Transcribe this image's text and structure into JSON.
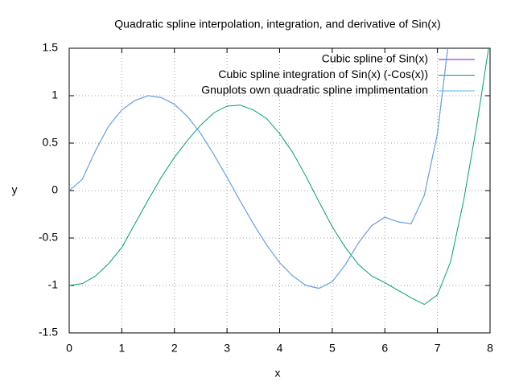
{
  "chart_data": {
    "type": "line",
    "title": "Quadratic spline interpolation, integration, and derivative of Sin(x)",
    "x_label": "x",
    "y_label": "y",
    "x": [
      0,
      0.25,
      0.5,
      0.75,
      1,
      1.25,
      1.5,
      1.75,
      2,
      2.25,
      2.5,
      2.75,
      3,
      3.25,
      3.5,
      3.75,
      4,
      4.25,
      4.5,
      4.75,
      5,
      5.25,
      5.5,
      5.75,
      6,
      6.25,
      6.5,
      6.75,
      7,
      7.25,
      7.5,
      7.75,
      8
    ],
    "series": [
      {
        "name": "Cubic spline of Sin(x)",
        "color": "#9400d3",
        "values": [
          0,
          0.12,
          0.42,
          0.68,
          0.85,
          0.95,
          1.0,
          0.98,
          0.91,
          0.78,
          0.6,
          0.38,
          0.14,
          -0.11,
          -0.35,
          -0.57,
          -0.76,
          -0.9,
          -1.0,
          -1.03,
          -0.96,
          -0.78,
          -0.55,
          -0.37,
          -0.28,
          -0.33,
          -0.35,
          -0.05,
          0.6,
          1.75,
          null,
          null,
          null
        ]
      },
      {
        "name": "Cubic spline integration of Sin(x) (-Cos(x))",
        "color": "#009e73",
        "values": [
          -1,
          -0.98,
          -0.9,
          -0.77,
          -0.6,
          -0.35,
          -0.1,
          0.14,
          0.35,
          0.53,
          0.69,
          0.82,
          0.89,
          0.9,
          0.85,
          0.76,
          0.6,
          0.4,
          0.15,
          -0.12,
          -0.38,
          -0.6,
          -0.78,
          -0.9,
          -0.97,
          -1.05,
          -1.13,
          -1.2,
          -1.1,
          -0.75,
          -0.1,
          0.7,
          1.6
        ]
      },
      {
        "name": "Gnuplots own quadratic spline implimentation",
        "color": "#56b4e9",
        "values": [
          0,
          0.12,
          0.42,
          0.68,
          0.85,
          0.95,
          1.0,
          0.98,
          0.91,
          0.78,
          0.6,
          0.38,
          0.14,
          -0.11,
          -0.35,
          -0.57,
          -0.76,
          -0.9,
          -1.0,
          -1.03,
          -0.96,
          -0.78,
          -0.55,
          -0.37,
          -0.28,
          -0.33,
          -0.35,
          -0.05,
          0.6,
          1.75,
          null,
          null,
          null
        ]
      }
    ],
    "xlim": [
      0,
      8
    ],
    "ylim": [
      -1.5,
      1.5
    ],
    "xticks": [
      0,
      1,
      2,
      3,
      4,
      5,
      6,
      7,
      8
    ],
    "yticks": [
      -1.5,
      -1,
      -0.5,
      0,
      0.5,
      1,
      1.5
    ],
    "grid": true,
    "legend": "top-right"
  }
}
